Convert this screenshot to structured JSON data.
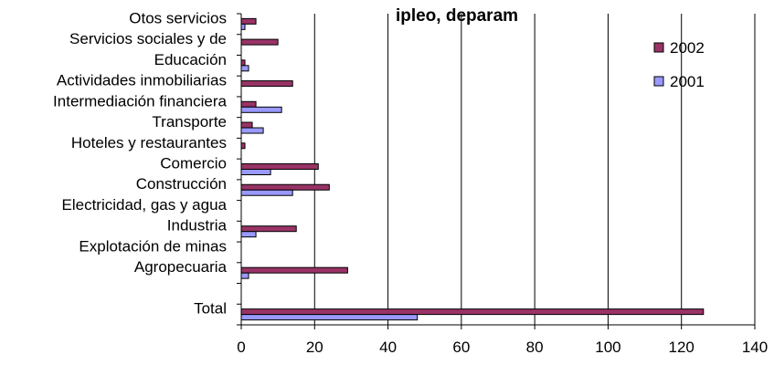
{
  "chart_data": {
    "type": "bar",
    "orientation": "horizontal",
    "title": "ipleo, deparam",
    "categories": [
      "Otos servicios",
      "Servicios sociales y de",
      "Educación",
      "Actividades inmobiliarias",
      "Intermediación financiera",
      "Transporte",
      "Hoteles y restaurantes",
      "Comercio",
      "Construcción",
      "Electricidad, gas y agua",
      "Industria",
      "Explotación de minas",
      "Agropecuaria",
      "",
      "Total"
    ],
    "series": [
      {
        "name": "2002",
        "color": "#993366",
        "values": [
          4,
          10,
          1,
          14,
          4,
          3,
          1,
          21,
          24,
          0,
          15,
          0,
          29,
          null,
          126
        ]
      },
      {
        "name": "2001",
        "color": "#9999ff",
        "values": [
          1,
          0,
          2,
          0,
          11,
          6,
          0,
          8,
          14,
          0,
          4,
          0,
          2,
          null,
          48
        ]
      }
    ],
    "xlim": [
      0,
      140
    ],
    "xticks": [
      0,
      20,
      40,
      60,
      80,
      100,
      120,
      140
    ],
    "grid": "vertical",
    "legend_position": "top-right"
  }
}
